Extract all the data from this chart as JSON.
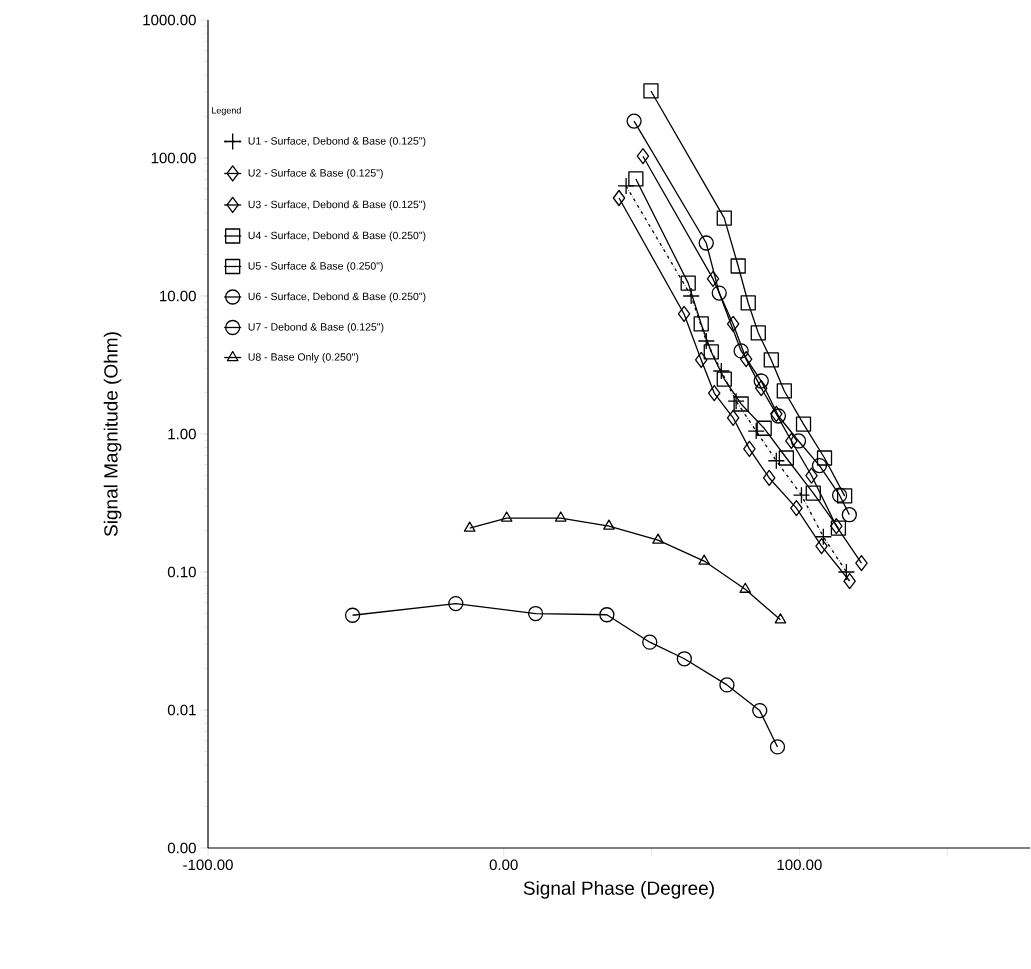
{
  "chart_data": {
    "type": "line",
    "xlabel": "Signal Phase (Degree)",
    "ylabel": "Signal Magnitude (Ohm)",
    "legend_title": "Legend",
    "legend": "top left",
    "log": "y",
    "grid": false,
    "xlim": [
      -100,
      178
    ],
    "ylim": [
      0.001,
      1000
    ],
    "xticks": [
      {
        "value": -100,
        "label": "-100.00"
      },
      {
        "value": 0,
        "label": "0.00"
      },
      {
        "value": 50,
        "label": null
      },
      {
        "value": 100,
        "label": "100.00"
      },
      {
        "value": 150,
        "label": null
      }
    ],
    "yticks": [
      {
        "value": 0.001,
        "label": "0.00"
      },
      {
        "value": 0.01,
        "label": "0.01"
      },
      {
        "value": 0.1,
        "label": "0.10"
      },
      {
        "value": 1,
        "label": "1.00"
      },
      {
        "value": 10,
        "label": "10.00"
      },
      {
        "value": 100,
        "label": "100.00"
      },
      {
        "value": 1000,
        "label": "1000.00"
      }
    ],
    "series": [
      {
        "name": "U1 - Surface, Debond & Base (0.125\")",
        "color": "#000000",
        "marker": "cross",
        "line_style": "dashed",
        "x": [
          41.4,
          63.4,
          68.5,
          73.6,
          78.6,
          85.4,
          92.2,
          100.7,
          108.1,
          115.9
        ],
        "values": [
          62.7,
          10.0,
          4.72,
          2.86,
          1.73,
          1.05,
          0.64,
          0.36,
          0.18,
          0.1
        ]
      },
      {
        "name": "U2 - Surface & Base (0.125\")",
        "color": "#000000",
        "marker": "diamond",
        "line_style": "solid",
        "x": [
          39.0,
          61.0,
          66.8,
          71.2,
          77.6,
          83.1,
          89.8,
          99.0,
          107.5,
          117.0
        ],
        "values": [
          51.3,
          7.41,
          3.44,
          1.98,
          1.31,
          0.78,
          0.48,
          0.29,
          0.154,
          0.086
        ]
      },
      {
        "name": "U3 - Surface, Debond & Base (0.125\")",
        "color": "#000000",
        "marker": "diamond",
        "line_style": "solid",
        "x": [
          47.1,
          70.8,
          77.6,
          82.0,
          87.1,
          92.2,
          97.3,
          104.1,
          112.5,
          121.0
        ],
        "values": [
          103,
          13.3,
          6.27,
          3.49,
          2.15,
          1.4,
          0.89,
          0.5,
          0.215,
          0.116
        ]
      },
      {
        "name": "U4 - Surface, Debond & Base (0.250\")",
        "color": "#000000",
        "marker": "square",
        "line_style": "solid",
        "x": [
          49.8,
          74.6,
          79.3,
          82.7,
          86.1,
          90.5,
          94.9,
          101.4,
          108.5,
          115.3
        ],
        "values": [
          306,
          36.7,
          16.5,
          8.9,
          5.4,
          3.44,
          2.05,
          1.18,
          0.67,
          0.356
        ]
      },
      {
        "name": "U5 - Surface & Base (0.250\")",
        "color": "#000000",
        "marker": "square",
        "line_style": "solid",
        "x": [
          44.7,
          62.4,
          66.8,
          70.2,
          74.6,
          80.3,
          88.1,
          95.6,
          104.7,
          113.2
        ],
        "values": [
          70.5,
          12.4,
          6.27,
          3.93,
          2.5,
          1.65,
          1.1,
          0.67,
          0.373,
          0.208
        ]
      },
      {
        "name": "U6 - Surface, Debond & Base (0.250\")",
        "color": "#000000",
        "marker": "circle",
        "line_style": "solid",
        "x": [
          44.1,
          68.5,
          72.9,
          80.3,
          87.1,
          92.9,
          99.7,
          106.8,
          113.6,
          116.9
        ],
        "values": [
          185,
          24.2,
          10.5,
          4.0,
          2.42,
          1.35,
          0.89,
          0.59,
          0.36,
          0.26
        ]
      },
      {
        "name": "U7 - Debond & Base (0.125\")",
        "color": "#000000",
        "marker": "circle",
        "line_style": "solid",
        "x": [
          -51.1,
          -16.2,
          10.8,
          34.9,
          49.4,
          61.1,
          75.5,
          86.6,
          92.6
        ],
        "values": [
          0.0486,
          0.059,
          0.05,
          0.049,
          0.031,
          0.0235,
          0.0152,
          0.0099,
          0.0054
        ]
      },
      {
        "name": "U8 - Base Only (0.250\")",
        "color": "#000000",
        "marker": "triangle",
        "line_style": "solid",
        "x": [
          -11.5,
          1.0,
          19.3,
          35.6,
          52.2,
          67.8,
          81.7,
          93.6
        ],
        "values": [
          0.208,
          0.246,
          0.246,
          0.215,
          0.17,
          0.12,
          0.075,
          0.045
        ]
      }
    ]
  }
}
